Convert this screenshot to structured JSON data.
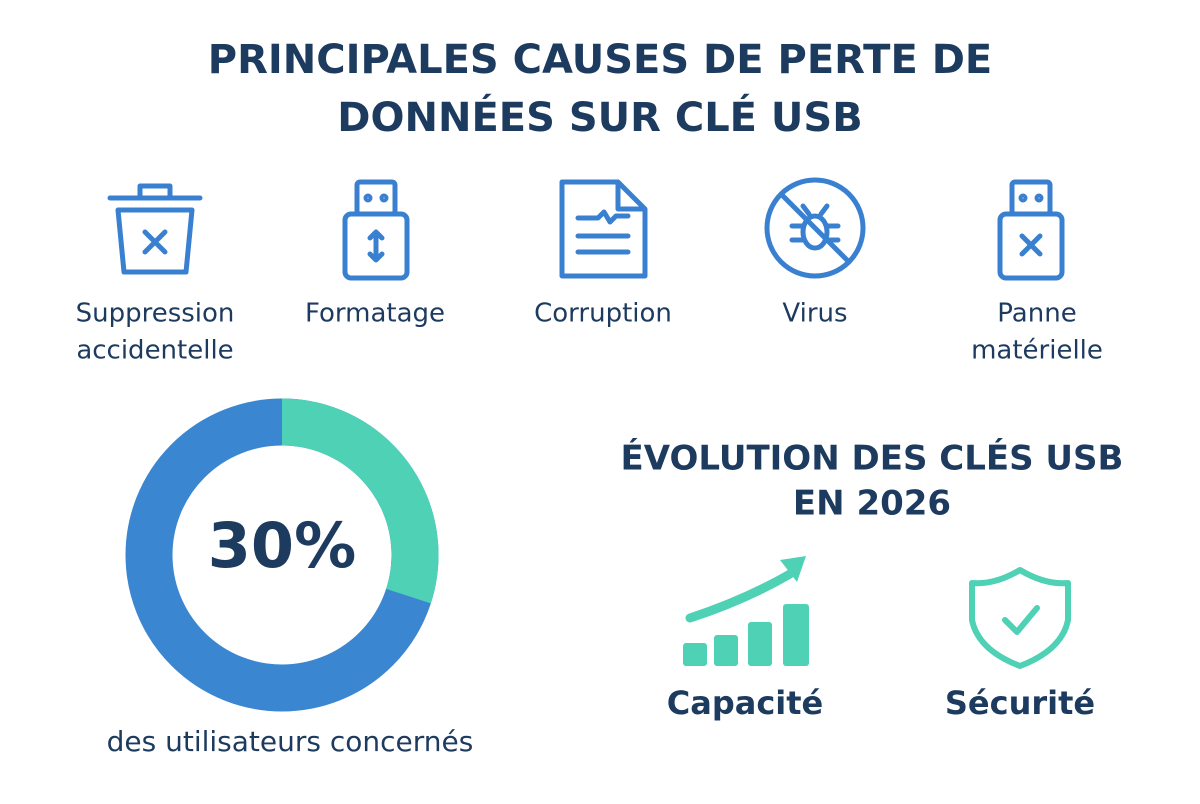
{
  "title_lines": [
    "PRINCIPALES CAUSES DE PERTE DE",
    "DONNÉES SUR CLÉ USB"
  ],
  "causes": [
    {
      "label_lines": [
        "Suppression",
        "accidentelle"
      ]
    },
    {
      "label_lines": [
        "Formatage"
      ]
    },
    {
      "label_lines": [
        "Corruption"
      ]
    },
    {
      "label_lines": [
        "Virus"
      ]
    },
    {
      "label_lines": [
        "Panne",
        "matérielle"
      ]
    }
  ],
  "stat": {
    "value": 30,
    "label": "30%",
    "caption": "des utilisateurs concernés"
  },
  "evolution": {
    "title_lines": [
      "ÉVOLUTION DES CLÉS USB",
      "EN 2026"
    ],
    "items": [
      {
        "label": "Capacité"
      },
      {
        "label": "Sécurité"
      }
    ]
  }
}
